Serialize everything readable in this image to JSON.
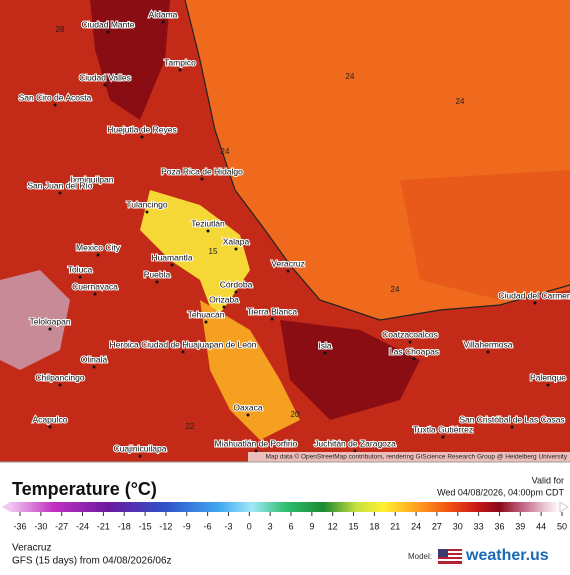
{
  "map": {
    "labels": [
      "Aldama",
      "Ciudad Mante",
      "Tampico",
      "Ciudad Valles",
      "San Ciro de Acosta",
      "Huejutla de Reyes",
      "Poza Rica de Hidalgo",
      "Ixmiquilpan",
      "San Juan del Río",
      "Tulancingo",
      "Teziutlán",
      "Xalapa",
      "Mexico City",
      "Huamantla",
      "Veracruz",
      "Toluca",
      "Puebla",
      "Córdoba",
      "Cuernavaca",
      "Orizaba",
      "Tierra Blanca",
      "Tehuacán",
      "Coatzacoalcos",
      "Ciudad del Carmen",
      "Teloloapan",
      "Heroica Ciudad de Huajuapan de León",
      "Las Choapas",
      "Isla",
      "Villahermosa",
      "Chilpancingo",
      "Olinalá",
      "Palenque",
      "Oaxaca",
      "San Cristóbal de Las Casas",
      "Acapulco",
      "Tuxtla Gutiérrez",
      "Cuajinicuilapa",
      "Miahuatlán de Porfirio",
      "Juchitán de Zaragoza"
    ],
    "contour_labels": [
      24,
      24,
      24,
      15,
      20,
      22,
      28,
      24
    ],
    "attribution": "Map data © OpenStreetMap contributors, rendering GIScience Research Group @ Heidelberg University"
  },
  "legend": {
    "title": "Temperature (°C)",
    "valid_label": "Valid for",
    "valid_time": "Wed 04/08/2026, 04:00pm CDT",
    "ticks": [
      -36,
      -30,
      -27,
      -24,
      -21,
      -18,
      -15,
      -12,
      -9,
      -6,
      -3,
      0,
      3,
      6,
      9,
      12,
      15,
      18,
      21,
      24,
      27,
      30,
      33,
      36,
      39,
      44,
      50
    ]
  },
  "footer": {
    "location": "Veracruz",
    "run": "GFS (15 days) from 04/08/2026/06z",
    "model_label": "Model:",
    "brand": "weather.us"
  }
}
